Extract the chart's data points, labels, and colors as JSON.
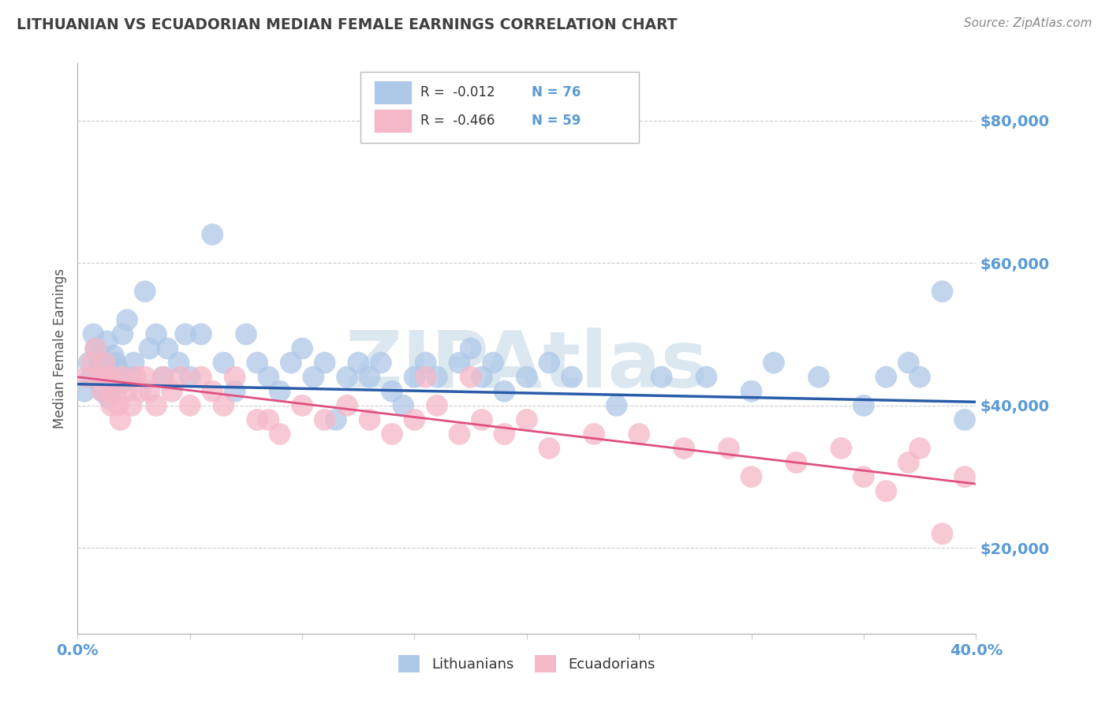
{
  "title": "LITHUANIAN VS ECUADORIAN MEDIAN FEMALE EARNINGS CORRELATION CHART",
  "source": "Source: ZipAtlas.com",
  "ylabel": "Median Female Earnings",
  "xlim": [
    0.0,
    0.4
  ],
  "ylim": [
    8000,
    88000
  ],
  "yticks": [
    20000,
    40000,
    60000,
    80000
  ],
  "ytick_labels": [
    "$20,000",
    "$40,000",
    "$60,000",
    "$80,000"
  ],
  "xticks": [
    0.0,
    0.05,
    0.1,
    0.15,
    0.2,
    0.25,
    0.3,
    0.35,
    0.4
  ],
  "blue_R": -0.012,
  "blue_N": 76,
  "pink_R": -0.466,
  "pink_N": 59,
  "blue_color": "#aec8e8",
  "pink_color": "#f5b8c8",
  "blue_line_color": "#2a5caa",
  "pink_line_color": "#e05080",
  "background_color": "#ffffff",
  "grid_color": "#cccccc",
  "watermark_text": "ZIPAtlas",
  "watermark_color": "#dce8f0",
  "title_color": "#404040",
  "axis_label_color": "#555555",
  "tick_label_color": "#5b9bd5",
  "legend_r_color": "#5b9bd5",
  "blue_scatter_x": [
    0.003,
    0.005,
    0.006,
    0.007,
    0.008,
    0.009,
    0.01,
    0.01,
    0.011,
    0.012,
    0.012,
    0.013,
    0.013,
    0.014,
    0.014,
    0.015,
    0.015,
    0.016,
    0.016,
    0.017,
    0.018,
    0.019,
    0.02,
    0.022,
    0.024,
    0.025,
    0.03,
    0.032,
    0.035,
    0.038,
    0.04,
    0.045,
    0.048,
    0.05,
    0.055,
    0.06,
    0.065,
    0.07,
    0.075,
    0.08,
    0.085,
    0.09,
    0.095,
    0.1,
    0.105,
    0.11,
    0.115,
    0.12,
    0.125,
    0.13,
    0.135,
    0.14,
    0.145,
    0.15,
    0.155,
    0.16,
    0.17,
    0.175,
    0.18,
    0.185,
    0.19,
    0.2,
    0.21,
    0.22,
    0.24,
    0.26,
    0.28,
    0.3,
    0.31,
    0.33,
    0.35,
    0.36,
    0.37,
    0.375,
    0.385,
    0.395
  ],
  "blue_scatter_y": [
    42000,
    46000,
    44000,
    50000,
    48000,
    45000,
    43000,
    47000,
    42000,
    44000,
    46000,
    43000,
    49000,
    45000,
    41000,
    44000,
    42000,
    43000,
    47000,
    46000,
    45000,
    43000,
    50000,
    52000,
    44000,
    46000,
    56000,
    48000,
    50000,
    44000,
    48000,
    46000,
    50000,
    44000,
    50000,
    64000,
    46000,
    42000,
    50000,
    46000,
    44000,
    42000,
    46000,
    48000,
    44000,
    46000,
    38000,
    44000,
    46000,
    44000,
    46000,
    42000,
    40000,
    44000,
    46000,
    44000,
    46000,
    48000,
    44000,
    46000,
    42000,
    44000,
    46000,
    44000,
    40000,
    44000,
    44000,
    42000,
    46000,
    44000,
    40000,
    44000,
    46000,
    44000,
    56000,
    38000
  ],
  "pink_scatter_x": [
    0.004,
    0.006,
    0.008,
    0.01,
    0.011,
    0.012,
    0.013,
    0.014,
    0.015,
    0.016,
    0.017,
    0.018,
    0.019,
    0.02,
    0.022,
    0.024,
    0.026,
    0.028,
    0.03,
    0.032,
    0.035,
    0.038,
    0.042,
    0.046,
    0.05,
    0.055,
    0.06,
    0.065,
    0.07,
    0.08,
    0.085,
    0.09,
    0.1,
    0.11,
    0.12,
    0.13,
    0.14,
    0.15,
    0.155,
    0.16,
    0.17,
    0.175,
    0.18,
    0.19,
    0.2,
    0.21,
    0.23,
    0.25,
    0.27,
    0.29,
    0.3,
    0.32,
    0.34,
    0.35,
    0.36,
    0.37,
    0.375,
    0.385,
    0.395
  ],
  "pink_scatter_y": [
    44000,
    46000,
    48000,
    44000,
    42000,
    46000,
    44000,
    42000,
    40000,
    44000,
    42000,
    40000,
    38000,
    44000,
    42000,
    40000,
    44000,
    42000,
    44000,
    42000,
    40000,
    44000,
    42000,
    44000,
    40000,
    44000,
    42000,
    40000,
    44000,
    38000,
    38000,
    36000,
    40000,
    38000,
    40000,
    38000,
    36000,
    38000,
    44000,
    40000,
    36000,
    44000,
    38000,
    36000,
    38000,
    34000,
    36000,
    36000,
    34000,
    34000,
    30000,
    32000,
    34000,
    30000,
    28000,
    32000,
    34000,
    22000,
    30000
  ]
}
